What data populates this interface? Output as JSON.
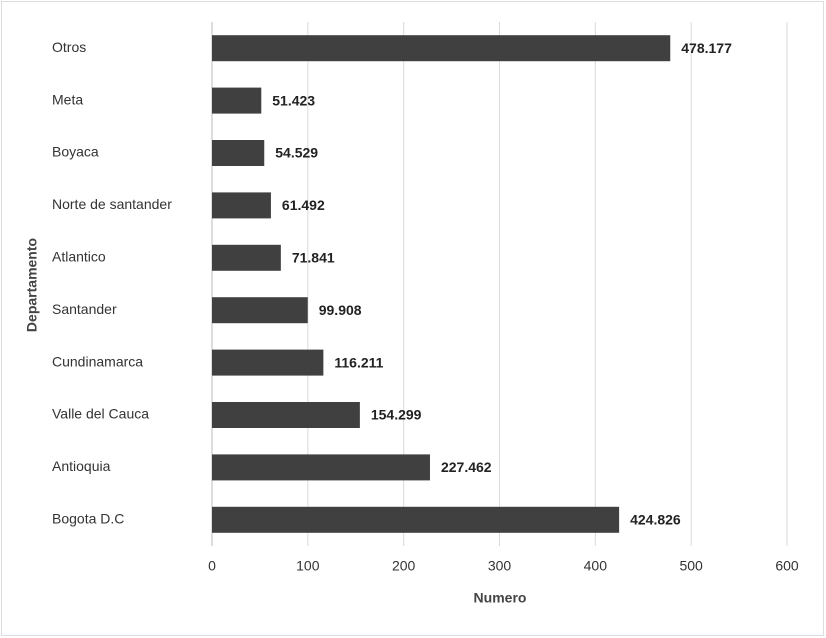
{
  "chart_data": {
    "type": "bar",
    "orientation": "horizontal",
    "x_label": "Numero",
    "y_label": "Departamento",
    "categories": [
      "Otros",
      "Meta",
      "Boyaca",
      "Norte de santander",
      "Atlantico",
      "Santander",
      "Cundinamarca",
      "Valle del Cauca",
      "Antioquia",
      "Bogota D.C"
    ],
    "values": [
      478.177,
      51.423,
      54.529,
      61.492,
      71.841,
      99.908,
      116.211,
      154.299,
      227.462,
      424.826
    ],
    "color": "#404040",
    "xlim": [
      0,
      600
    ],
    "xticks": [
      0,
      100,
      200,
      300,
      400,
      500,
      600
    ],
    "grid": true
  }
}
